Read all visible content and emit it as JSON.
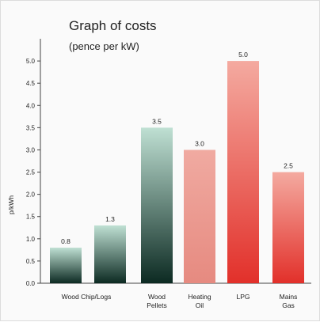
{
  "chart_data": {
    "type": "bar",
    "title": "Graph of costs",
    "subtitle": "(pence per kW)",
    "ylabel": "p/kWh",
    "xlabel": "",
    "ylim": [
      0,
      5.5
    ],
    "yticks": [
      "0.0",
      "0.5",
      "1.0",
      "1.5",
      "2.0",
      "2.5",
      "3.0",
      "3.5",
      "4.0",
      "4.5",
      "5.0"
    ],
    "grid": false,
    "categories": [
      [
        "Wood Chip/Logs"
      ],
      [
        ""
      ],
      [
        "Wood",
        "Pellets"
      ],
      [
        "Heating",
        "Oil"
      ],
      [
        "LPG"
      ],
      [
        "Mains",
        "Gas"
      ]
    ],
    "values": [
      0.8,
      1.3,
      3.5,
      3.0,
      5.0,
      2.5
    ],
    "value_labels": [
      "0.8",
      "1.3",
      "3.5",
      "3.0",
      "5.0",
      "2.5"
    ],
    "colors": [
      {
        "top": "#bfe0d3",
        "bottom": "#0c2a22"
      },
      {
        "top": "#bfe0d3",
        "bottom": "#0c2a22"
      },
      {
        "top": "#bfe0d3",
        "bottom": "#0c2a22"
      },
      {
        "top": "#f0aaa1",
        "bottom": "#e68a80"
      },
      {
        "top": "#f4aaa0",
        "bottom": "#e2302a"
      },
      {
        "top": "#f4aaa0",
        "bottom": "#e2302a"
      }
    ]
  }
}
